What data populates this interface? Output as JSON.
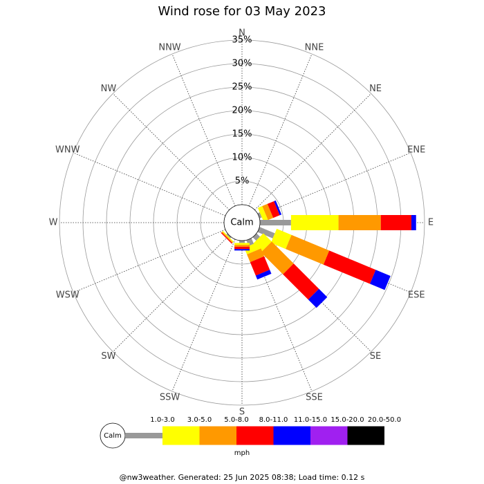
{
  "chart_data": {
    "type": "wind-rose",
    "title": "Wind rose for 03 May 2023",
    "directions": [
      "N",
      "NNE",
      "NE",
      "ENE",
      "E",
      "ESE",
      "SE",
      "SSE",
      "S",
      "SSW",
      "SW",
      "WSW",
      "W",
      "WNW",
      "NW",
      "NNW"
    ],
    "calm_label": "Calm",
    "unit": "mph",
    "rlim": [
      0,
      35
    ],
    "rticks": [
      {
        "value": 5,
        "label": "5%"
      },
      {
        "value": 10,
        "label": "10%"
      },
      {
        "value": 15,
        "label": "15%"
      },
      {
        "value": 20,
        "label": "20%"
      },
      {
        "value": 25,
        "label": "25%"
      },
      {
        "value": 30,
        "label": "30%"
      },
      {
        "value": 35,
        "label": "35%"
      }
    ],
    "series": [
      {
        "name": "1.0-3.0",
        "color": "#999999",
        "values": [
          0,
          0,
          0,
          0.5,
          6.6,
          3.5,
          1.0,
          1.3,
          0.5,
          0,
          0.3,
          0,
          0,
          0,
          0,
          0
        ]
      },
      {
        "name": "3.0-5.0",
        "color": "#ffff00",
        "values": [
          0,
          0,
          0,
          1.0,
          10.1,
          3.4,
          2.5,
          1.5,
          0.4,
          0,
          0.2,
          0,
          0,
          0,
          0,
          0
        ]
      },
      {
        "name": "5.0-8.0",
        "color": "#ff9900",
        "values": [
          0,
          0,
          0,
          1.2,
          9.0,
          8.7,
          6.6,
          1.8,
          0.4,
          0,
          0.2,
          0,
          0,
          0,
          0,
          0
        ]
      },
      {
        "name": "8.0-11.0",
        "color": "#ff0000",
        "values": [
          0,
          0,
          0,
          1.5,
          6.5,
          10.7,
          7.6,
          3.1,
          0.5,
          0,
          0.2,
          0,
          0,
          0,
          0,
          0
        ]
      },
      {
        "name": "11.0-15.0",
        "color": "#0000ff",
        "values": [
          0,
          0,
          0,
          0.4,
          1.0,
          3.4,
          2.5,
          0.9,
          0.3,
          0,
          0,
          0,
          0,
          0,
          0,
          0
        ]
      },
      {
        "name": "15.0-20.0",
        "color": "#a020f0",
        "values": [
          0,
          0,
          0,
          0,
          0,
          0,
          0,
          0,
          0,
          0,
          0,
          0,
          0,
          0,
          0,
          0
        ]
      },
      {
        "name": "20.0-50.0",
        "color": "#000000",
        "values": [
          0,
          0,
          0,
          0,
          0,
          0,
          0,
          0,
          0,
          0,
          0,
          0,
          0,
          0,
          0,
          0
        ]
      }
    ]
  },
  "footer": "@nw3weather. Generated: 25 Jun 2025 08:38; Load time: 0.12 s"
}
